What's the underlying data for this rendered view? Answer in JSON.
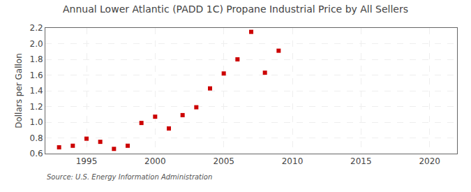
{
  "chart_data": {
    "type": "scatter",
    "title": "Annual Lower Atlantic (PADD 1C) Propane Industrial Price by All Sellers",
    "ylabel": "Dollars per Gallon",
    "source": "Source: U.S. Energy Information Administration",
    "x": [
      1993,
      1994,
      1995,
      1996,
      1997,
      1998,
      1999,
      2000,
      2001,
      2002,
      2003,
      2004,
      2005,
      2006,
      2007,
      2008,
      2009
    ],
    "values": [
      0.68,
      0.7,
      0.79,
      0.75,
      0.66,
      0.7,
      0.99,
      1.07,
      0.92,
      1.09,
      1.19,
      1.43,
      1.62,
      1.8,
      2.15,
      1.63,
      1.91
    ],
    "color": "#cc0000",
    "marker": "square",
    "xlim": [
      1992,
      2022
    ],
    "ylim": [
      0.6,
      2.2
    ],
    "xticks": [
      1995,
      2000,
      2005,
      2010,
      2015,
      2020
    ],
    "yticks": [
      0.6,
      0.8,
      {
        "value": 1,
        "label": "1.0"
      },
      1.2,
      1.4,
      1.6,
      1.8,
      {
        "value": 2,
        "label": "2.0"
      },
      2.2
    ],
    "grid": true
  }
}
